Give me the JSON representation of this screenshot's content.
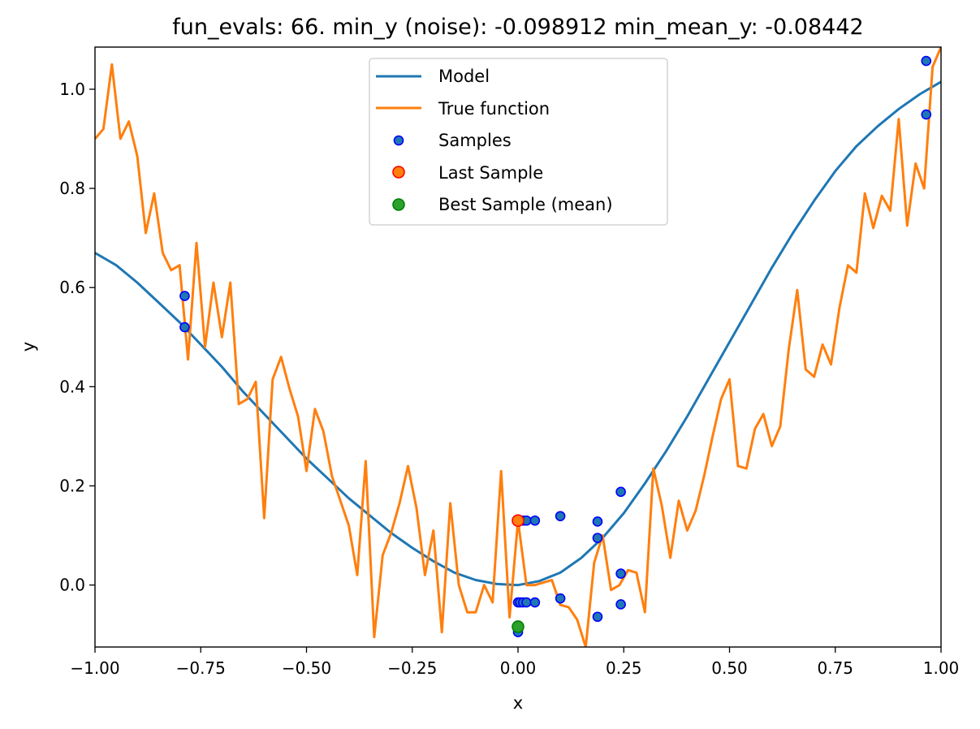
{
  "chart_data": {
    "type": "line",
    "title": "fun_evals: 66. min_y (noise): -0.098912 min_mean_y: -0.08442",
    "xlabel": "x",
    "ylabel": "y",
    "xlim": [
      -1.0,
      1.0
    ],
    "ylim": [
      -0.125,
      1.085
    ],
    "xticks": [
      -1.0,
      -0.75,
      -0.5,
      -0.25,
      0.0,
      0.25,
      0.5,
      0.75,
      1.0
    ],
    "xtick_labels": [
      "−1.00",
      "−0.75",
      "−0.50",
      "−0.25",
      "0.00",
      "0.25",
      "0.50",
      "0.75",
      "1.00"
    ],
    "yticks": [
      0.0,
      0.2,
      0.4,
      0.6,
      0.8,
      1.0
    ],
    "ytick_labels": [
      "0.0",
      "0.2",
      "0.4",
      "0.6",
      "0.8",
      "1.0"
    ],
    "grid": false,
    "legend_position": "top-center",
    "colors": {
      "model": "#1f77b4",
      "true_function": "#ff7f0e",
      "samples_fill": "#1f77b4",
      "samples_edge": "#0000ff",
      "last_fill": "#ff7f0e",
      "last_edge": "#ff0000",
      "best_fill": "#2ca02c",
      "best_edge": "#008000"
    },
    "series": [
      {
        "name": "Model",
        "kind": "line",
        "x": [
          -1.0,
          -0.95,
          -0.9,
          -0.85,
          -0.8,
          -0.75,
          -0.7,
          -0.65,
          -0.6,
          -0.55,
          -0.5,
          -0.45,
          -0.4,
          -0.35,
          -0.3,
          -0.25,
          -0.2,
          -0.15,
          -0.1,
          -0.05,
          0.0,
          0.05,
          0.1,
          0.15,
          0.2,
          0.25,
          0.3,
          0.35,
          0.4,
          0.45,
          0.5,
          0.55,
          0.6,
          0.65,
          0.7,
          0.75,
          0.8,
          0.85,
          0.9,
          0.95,
          1.0
        ],
        "y": [
          0.67,
          0.645,
          0.61,
          0.57,
          0.53,
          0.485,
          0.44,
          0.39,
          0.345,
          0.3,
          0.255,
          0.215,
          0.175,
          0.14,
          0.105,
          0.075,
          0.048,
          0.025,
          0.01,
          0.002,
          0.0,
          0.008,
          0.025,
          0.055,
          0.095,
          0.145,
          0.205,
          0.27,
          0.34,
          0.415,
          0.49,
          0.565,
          0.64,
          0.71,
          0.775,
          0.835,
          0.885,
          0.925,
          0.96,
          0.99,
          1.015
        ]
      },
      {
        "name": "True function",
        "kind": "line",
        "x": [
          -1.0,
          -0.98,
          -0.96,
          -0.94,
          -0.92,
          -0.9,
          -0.88,
          -0.86,
          -0.84,
          -0.82,
          -0.8,
          -0.78,
          -0.76,
          -0.74,
          -0.72,
          -0.7,
          -0.68,
          -0.66,
          -0.64,
          -0.62,
          -0.6,
          -0.58,
          -0.56,
          -0.54,
          -0.52,
          -0.5,
          -0.48,
          -0.46,
          -0.44,
          -0.42,
          -0.4,
          -0.38,
          -0.36,
          -0.34,
          -0.32,
          -0.3,
          -0.28,
          -0.26,
          -0.24,
          -0.22,
          -0.2,
          -0.18,
          -0.16,
          -0.14,
          -0.12,
          -0.1,
          -0.08,
          -0.06,
          -0.04,
          -0.02,
          0.0,
          0.02,
          0.04,
          0.06,
          0.08,
          0.1,
          0.12,
          0.14,
          0.16,
          0.18,
          0.2,
          0.22,
          0.24,
          0.26,
          0.28,
          0.3,
          0.32,
          0.34,
          0.36,
          0.38,
          0.4,
          0.42,
          0.44,
          0.46,
          0.48,
          0.5,
          0.52,
          0.54,
          0.56,
          0.58,
          0.6,
          0.62,
          0.64,
          0.66,
          0.68,
          0.7,
          0.72,
          0.74,
          0.76,
          0.78,
          0.8,
          0.82,
          0.84,
          0.86,
          0.88,
          0.9,
          0.92,
          0.94,
          0.96,
          0.98,
          1.0
        ],
        "y": [
          0.9,
          0.92,
          1.05,
          0.9,
          0.935,
          0.865,
          0.71,
          0.79,
          0.67,
          0.635,
          0.645,
          0.455,
          0.69,
          0.48,
          0.61,
          0.5,
          0.61,
          0.365,
          0.375,
          0.41,
          0.135,
          0.415,
          0.46,
          0.395,
          0.34,
          0.23,
          0.355,
          0.31,
          0.22,
          0.17,
          0.12,
          0.02,
          0.25,
          -0.105,
          0.06,
          0.105,
          0.165,
          0.24,
          0.155,
          0.02,
          0.11,
          -0.095,
          0.165,
          0.0,
          -0.055,
          -0.055,
          0.0,
          -0.035,
          0.23,
          -0.065,
          0.13,
          0.0,
          0.0,
          0.005,
          0.01,
          -0.04,
          -0.045,
          -0.07,
          -0.125,
          0.045,
          0.1,
          -0.01,
          0.0,
          0.03,
          0.025,
          -0.055,
          0.235,
          0.16,
          0.055,
          0.17,
          0.11,
          0.15,
          0.22,
          0.3,
          0.375,
          0.415,
          0.24,
          0.235,
          0.315,
          0.345,
          0.28,
          0.32,
          0.475,
          0.595,
          0.435,
          0.42,
          0.485,
          0.445,
          0.56,
          0.645,
          0.63,
          0.79,
          0.72,
          0.785,
          0.755,
          0.94,
          0.725,
          0.85,
          0.8,
          1.045,
          1.085
        ]
      },
      {
        "name": "Samples",
        "kind": "scatter",
        "x": [
          -0.788,
          -0.788,
          0.0,
          0.0,
          0.0,
          0.005,
          0.012,
          0.012,
          0.02,
          0.02,
          0.04,
          0.04,
          0.1,
          0.1,
          0.188,
          0.188,
          0.188,
          0.243,
          0.243,
          0.243,
          0.965,
          0.965
        ],
        "y": [
          0.583,
          0.52,
          -0.095,
          -0.035,
          0.13,
          -0.035,
          0.13,
          -0.035,
          0.13,
          -0.035,
          0.13,
          -0.035,
          0.139,
          -0.027,
          0.128,
          0.095,
          -0.064,
          0.188,
          0.023,
          -0.039,
          1.057,
          0.949
        ]
      },
      {
        "name": "Last Sample",
        "kind": "scatter",
        "x": [
          0.0
        ],
        "y": [
          0.13
        ]
      },
      {
        "name": "Best Sample (mean)",
        "kind": "scatter",
        "x": [
          0.0
        ],
        "y": [
          -0.084
        ]
      }
    ]
  }
}
